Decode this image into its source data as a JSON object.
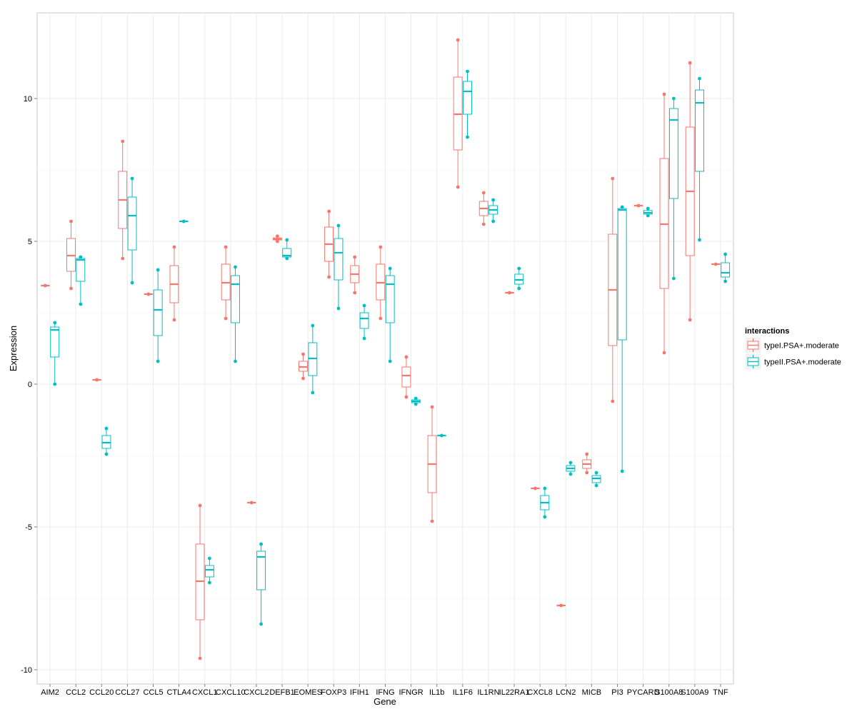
{
  "chart_data": {
    "type": "box",
    "xlabel": "Gene",
    "ylabel": "Expression",
    "ylim": [
      -10.5,
      13
    ],
    "yticks": [
      -10,
      -5,
      0,
      5,
      10
    ],
    "grid": true,
    "legend_position": "right",
    "legend_title": "interactions",
    "categories": [
      "AIM2",
      "CCL2",
      "CCL20",
      "CCL27",
      "CCL5",
      "CTLA4",
      "CXCL1",
      "CXCL10",
      "CXCL2",
      "DEFB1",
      "EOMES",
      "FOXP3",
      "IFIH1",
      "IFNG",
      "IFNGR",
      "IL1b",
      "IL1F6",
      "IL1RN",
      "IL22RA1",
      "CXCL8",
      "LCN2",
      "MICB",
      "PI3",
      "PYCARD",
      "S100A8",
      "S100A9",
      "TNF"
    ],
    "series": [
      {
        "name": "typeI.PSA+.moderate",
        "color": "#F8766D",
        "boxes": [
          {
            "cat": "AIM2",
            "min": 3.45,
            "q1": 3.45,
            "median": 3.45,
            "q3": 3.45,
            "max": 3.45,
            "points": [
              3.45
            ]
          },
          {
            "cat": "CCL2",
            "min": 3.35,
            "q1": 3.95,
            "median": 4.5,
            "q3": 5.1,
            "max": 5.7,
            "points": [
              5.7,
              3.35
            ]
          },
          {
            "cat": "CCL20",
            "min": 0.15,
            "q1": 0.15,
            "median": 0.15,
            "q3": 0.15,
            "max": 0.15,
            "points": [
              0.15
            ]
          },
          {
            "cat": "CCL27",
            "min": 4.4,
            "q1": 5.45,
            "median": 6.45,
            "q3": 7.45,
            "max": 8.5,
            "points": [
              8.5,
              4.4
            ]
          },
          {
            "cat": "CCL5",
            "min": 3.15,
            "q1": 3.15,
            "median": 3.15,
            "q3": 3.15,
            "max": 3.15,
            "points": [
              3.15
            ]
          },
          {
            "cat": "CTLA4",
            "min": 2.25,
            "q1": 2.85,
            "median": 3.5,
            "q3": 4.15,
            "max": 4.8,
            "points": [
              4.8,
              2.25
            ]
          },
          {
            "cat": "CXCL1",
            "min": -9.6,
            "q1": -8.25,
            "median": -6.9,
            "q3": -5.6,
            "max": -4.25,
            "points": [
              -4.25,
              -9.6
            ]
          },
          {
            "cat": "CXCL10",
            "min": 2.3,
            "q1": 2.95,
            "median": 3.55,
            "q3": 4.2,
            "max": 4.8,
            "points": [
              4.8,
              2.3
            ]
          },
          {
            "cat": "CXCL2",
            "min": -4.15,
            "q1": -4.15,
            "median": -4.15,
            "q3": -4.15,
            "max": -4.15,
            "points": [
              -4.15
            ]
          },
          {
            "cat": "DEFB1",
            "min": 5.0,
            "q1": 5.05,
            "median": 5.08,
            "q3": 5.12,
            "max": 5.18,
            "points": [
              5.18,
              5.0
            ]
          },
          {
            "cat": "EOMES",
            "min": 0.2,
            "q1": 0.45,
            "median": 0.6,
            "q3": 0.8,
            "max": 1.05,
            "points": [
              1.05,
              0.2
            ]
          },
          {
            "cat": "FOXP3",
            "min": 3.75,
            "q1": 4.3,
            "median": 4.9,
            "q3": 5.5,
            "max": 6.05,
            "points": [
              6.05,
              3.75
            ]
          },
          {
            "cat": "IFIH1",
            "min": 3.2,
            "q1": 3.55,
            "median": 3.85,
            "q3": 4.15,
            "max": 4.45,
            "points": [
              4.45,
              3.2
            ]
          },
          {
            "cat": "IFNG",
            "min": 2.3,
            "q1": 2.95,
            "median": 3.55,
            "q3": 4.2,
            "max": 4.8,
            "points": [
              4.8,
              2.3
            ]
          },
          {
            "cat": "IFNGR",
            "min": -0.45,
            "q1": -0.1,
            "median": 0.3,
            "q3": 0.6,
            "max": 0.95,
            "points": [
              0.95,
              -0.45
            ]
          },
          {
            "cat": "IL1b",
            "min": -4.8,
            "q1": -3.8,
            "median": -2.8,
            "q3": -1.8,
            "max": -0.8,
            "points": [
              -0.8,
              -4.8
            ]
          },
          {
            "cat": "IL1F6",
            "min": 6.9,
            "q1": 8.2,
            "median": 9.45,
            "q3": 10.75,
            "max": 12.05,
            "points": [
              12.05,
              6.9
            ]
          },
          {
            "cat": "IL1RN",
            "min": 5.6,
            "q1": 5.9,
            "median": 6.15,
            "q3": 6.4,
            "max": 6.7,
            "points": [
              6.7,
              5.6
            ]
          },
          {
            "cat": "IL22RA1",
            "min": 3.2,
            "q1": 3.2,
            "median": 3.2,
            "q3": 3.2,
            "max": 3.2,
            "points": [
              3.2
            ]
          },
          {
            "cat": "CXCL8",
            "min": -3.65,
            "q1": -3.65,
            "median": -3.65,
            "q3": -3.65,
            "max": -3.65,
            "points": [
              -3.65
            ]
          },
          {
            "cat": "LCN2",
            "min": -7.75,
            "q1": -7.75,
            "median": -7.75,
            "q3": -7.75,
            "max": -7.75,
            "points": [
              -7.75
            ]
          },
          {
            "cat": "MICB",
            "min": -3.1,
            "q1": -2.95,
            "median": -2.8,
            "q3": -2.65,
            "max": -2.45,
            "points": [
              -2.45,
              -3.1
            ]
          },
          {
            "cat": "PI3",
            "min": -0.6,
            "q1": 1.35,
            "median": 3.3,
            "q3": 5.25,
            "max": 7.2,
            "points": [
              7.2,
              -0.6
            ]
          },
          {
            "cat": "PYCARD",
            "min": 6.25,
            "q1": 6.25,
            "median": 6.25,
            "q3": 6.25,
            "max": 6.25,
            "points": [
              6.25
            ]
          },
          {
            "cat": "S100A8",
            "min": 1.1,
            "q1": 3.35,
            "median": 5.6,
            "q3": 7.9,
            "max": 10.15,
            "points": [
              10.15,
              1.1
            ]
          },
          {
            "cat": "S100A9",
            "min": 2.25,
            "q1": 4.5,
            "median": 6.75,
            "q3": 9.0,
            "max": 11.25,
            "points": [
              11.25,
              2.25
            ]
          },
          {
            "cat": "TNF",
            "min": 4.2,
            "q1": 4.2,
            "median": 4.2,
            "q3": 4.2,
            "max": 4.2,
            "points": [
              4.2
            ]
          }
        ]
      },
      {
        "name": "typeII.PSA+.moderate",
        "color": "#00BFC4",
        "boxes": [
          {
            "cat": "AIM2",
            "min": 0.0,
            "q1": 0.95,
            "median": 1.9,
            "q3": 2.0,
            "max": 2.15,
            "points": [
              2.15,
              0.0
            ]
          },
          {
            "cat": "CCL2",
            "min": 2.8,
            "q1": 3.6,
            "median": 4.35,
            "q3": 4.4,
            "max": 4.45,
            "points": [
              4.45,
              2.8
            ]
          },
          {
            "cat": "CCL20",
            "min": -2.45,
            "q1": -2.25,
            "median": -2.05,
            "q3": -1.8,
            "max": -1.55,
            "points": [
              -1.55,
              -2.45
            ]
          },
          {
            "cat": "CCL27",
            "min": 3.55,
            "q1": 4.7,
            "median": 5.9,
            "q3": 6.55,
            "max": 7.2,
            "points": [
              7.2,
              3.55
            ]
          },
          {
            "cat": "CCL5",
            "min": 0.8,
            "q1": 1.7,
            "median": 2.6,
            "q3": 3.3,
            "max": 4.0,
            "points": [
              4.0,
              0.8
            ]
          },
          {
            "cat": "CTLA4",
            "min": 5.7,
            "q1": 5.7,
            "median": 5.7,
            "q3": 5.7,
            "max": 5.7,
            "points": [
              5.7
            ]
          },
          {
            "cat": "CXCL1",
            "min": -6.95,
            "q1": -6.75,
            "median": -6.5,
            "q3": -6.35,
            "max": -6.1,
            "points": [
              -6.1,
              -6.95
            ]
          },
          {
            "cat": "CXCL10",
            "min": 0.8,
            "q1": 2.15,
            "median": 3.5,
            "q3": 3.8,
            "max": 4.1,
            "points": [
              4.1,
              0.8
            ]
          },
          {
            "cat": "CXCL2",
            "min": -8.4,
            "q1": -7.2,
            "median": -6.05,
            "q3": -5.85,
            "max": -5.6,
            "points": [
              -5.6,
              -8.4
            ]
          },
          {
            "cat": "DEFB1",
            "min": 4.4,
            "q1": 4.45,
            "median": 4.5,
            "q3": 4.75,
            "max": 5.05,
            "points": [
              5.05,
              4.4
            ]
          },
          {
            "cat": "EOMES",
            "min": -0.3,
            "q1": 0.3,
            "median": 0.9,
            "q3": 1.45,
            "max": 2.05,
            "points": [
              2.05,
              -0.3
            ]
          },
          {
            "cat": "FOXP3",
            "min": 2.65,
            "q1": 3.65,
            "median": 4.6,
            "q3": 5.1,
            "max": 5.55,
            "points": [
              5.55,
              2.65
            ]
          },
          {
            "cat": "IFIH1",
            "min": 1.6,
            "q1": 1.95,
            "median": 2.3,
            "q3": 2.5,
            "max": 2.75,
            "points": [
              2.75,
              1.6
            ]
          },
          {
            "cat": "IFNG",
            "min": 0.8,
            "q1": 2.15,
            "median": 3.5,
            "q3": 3.8,
            "max": 4.05,
            "points": [
              4.05,
              0.8
            ]
          },
          {
            "cat": "IFNGR",
            "min": -0.7,
            "q1": -0.65,
            "median": -0.6,
            "q3": -0.55,
            "max": -0.5,
            "points": [
              -0.5,
              -0.7
            ]
          },
          {
            "cat": "IL1b",
            "min": -1.8,
            "q1": -1.8,
            "median": -1.8,
            "q3": -1.8,
            "max": -1.8,
            "points": [
              -1.8
            ]
          },
          {
            "cat": "IL1F6",
            "min": 8.65,
            "q1": 9.45,
            "median": 10.25,
            "q3": 10.6,
            "max": 10.95,
            "points": [
              10.95,
              8.65
            ]
          },
          {
            "cat": "IL1RN",
            "min": 5.7,
            "q1": 5.95,
            "median": 6.1,
            "q3": 6.25,
            "max": 6.45,
            "points": [
              6.45,
              5.7
            ]
          },
          {
            "cat": "IL22RA1",
            "min": 3.35,
            "q1": 3.5,
            "median": 3.65,
            "q3": 3.85,
            "max": 4.05,
            "points": [
              4.05,
              3.35
            ]
          },
          {
            "cat": "CXCL8",
            "min": -4.65,
            "q1": -4.4,
            "median": -4.15,
            "q3": -3.9,
            "max": -3.65,
            "points": [
              -3.65,
              -4.65
            ]
          },
          {
            "cat": "LCN2",
            "min": -3.15,
            "q1": -3.05,
            "median": -2.95,
            "q3": -2.85,
            "max": -2.75,
            "points": [
              -2.75,
              -3.15
            ]
          },
          {
            "cat": "MICB",
            "min": -3.55,
            "q1": -3.45,
            "median": -3.3,
            "q3": -3.2,
            "max": -3.1,
            "points": [
              -3.1,
              -3.55
            ]
          },
          {
            "cat": "PI3",
            "min": -3.05,
            "q1": 1.55,
            "median": 6.1,
            "q3": 6.15,
            "max": 6.2,
            "points": [
              6.2,
              -3.05
            ]
          },
          {
            "cat": "PYCARD",
            "min": 5.9,
            "q1": 5.95,
            "median": 6.0,
            "q3": 6.08,
            "max": 6.15,
            "points": [
              6.15,
              5.9
            ]
          },
          {
            "cat": "S100A8",
            "min": 3.7,
            "q1": 6.5,
            "median": 9.25,
            "q3": 9.65,
            "max": 10.0,
            "points": [
              10.0,
              3.7
            ]
          },
          {
            "cat": "S100A9",
            "min": 5.05,
            "q1": 7.45,
            "median": 9.85,
            "q3": 10.3,
            "max": 10.7,
            "points": [
              10.7,
              5.05
            ]
          },
          {
            "cat": "TNF",
            "min": 3.6,
            "q1": 3.75,
            "median": 3.9,
            "q3": 4.25,
            "max": 4.55,
            "points": [
              4.55,
              3.6
            ]
          }
        ]
      }
    ]
  }
}
